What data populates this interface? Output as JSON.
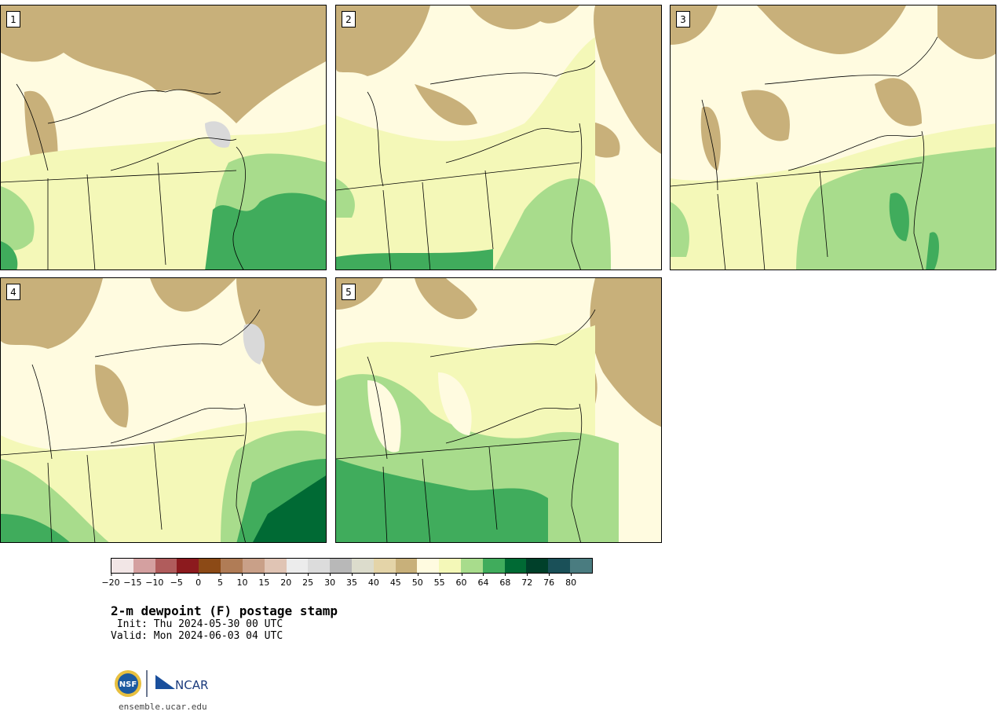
{
  "panels": [
    {
      "label": "1"
    },
    {
      "label": "2"
    },
    {
      "label": "3"
    },
    {
      "label": "4"
    },
    {
      "label": "5"
    }
  ],
  "colors": {
    "brown": "#c8b07a",
    "tan": "#e0d4b0",
    "grey": "#d9d9d9",
    "cream": "#fffbe0",
    "pale_yellow": "#f4f8b8",
    "light_green": "#a8dc8c",
    "green": "#40ac5c",
    "dark_green": "#006a34"
  },
  "colorbar": {
    "colors": [
      "#f2e6e6",
      "#d4a0a0",
      "#b05c5c",
      "#8c1a1e",
      "#8c4a16",
      "#b07c56",
      "#c9a088",
      "#e0c4b4",
      "#ececec",
      "#dcdcdc",
      "#b8b8b8",
      "#dcdccc",
      "#e4d4a8",
      "#c8b07a",
      "#fffbe0",
      "#f4f8b8",
      "#a8dc8c",
      "#40ac5c",
      "#006a34",
      "#00402a",
      "#1a5058",
      "#4a7c80"
    ],
    "ticks": [
      "−20",
      "−15",
      "−10",
      "−5",
      "0",
      "5",
      "10",
      "15",
      "20",
      "25",
      "30",
      "35",
      "40",
      "45",
      "50",
      "55",
      "60",
      "64",
      "68",
      "72",
      "76",
      "80"
    ]
  },
  "title": "2-m dewpoint (F) postage stamp",
  "init": " Init: Thu 2024-05-30 00 UTC",
  "valid": "Valid: Mon 2024-06-03 04 UTC",
  "logo_nsf": "NSF",
  "logo_ncar": "NCAR",
  "url": "ensemble.ucar.edu"
}
